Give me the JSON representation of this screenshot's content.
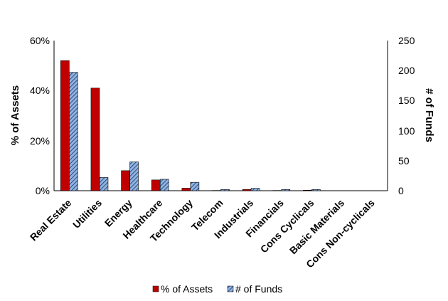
{
  "chart_data": {
    "type": "bar",
    "categories": [
      "Real Estate",
      "Utilities",
      "Energy",
      "Healthcare",
      "Technology",
      "Telecom",
      "Industrials",
      "Financials",
      "Cons Cyclicals",
      "Basic Materials",
      "Cons Non-cyclicals"
    ],
    "series": [
      {
        "name": "% of Assets",
        "axis": "left",
        "values": [
          0.52,
          0.41,
          0.08,
          0.043,
          0.01,
          0.001,
          0.005,
          0.001,
          0.002,
          0.0,
          0.0
        ],
        "color": "#c00000"
      },
      {
        "name": "# of Funds",
        "axis": "right",
        "values": [
          197,
          22,
          48,
          19,
          14,
          2,
          4,
          2,
          2,
          0,
          0
        ],
        "color": "#8db4e2"
      }
    ],
    "ylabel": "% of Assets",
    "y2label": "# of Funds",
    "ylim": [
      0,
      0.6
    ],
    "y2lim": [
      0,
      250
    ],
    "yticks": [
      "0%",
      "20%",
      "40%",
      "60%"
    ],
    "y2ticks": [
      "0",
      "50",
      "100",
      "150",
      "200",
      "250"
    ],
    "legend": "bottom",
    "grid": false
  }
}
